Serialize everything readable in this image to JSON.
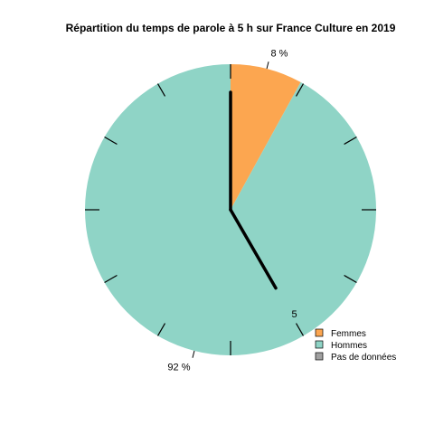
{
  "chart_data": {
    "type": "pie",
    "title": "Répartition du temps de parole à 5 h sur France Culture en 2019",
    "slices": [
      {
        "name": "Femmes",
        "value": 8,
        "label": "8 %",
        "color": "#fca650"
      },
      {
        "name": "Hommes",
        "value": 92,
        "label": "92 %",
        "color": "#8fd4c6"
      }
    ],
    "legend": [
      {
        "name": "Femmes",
        "color": "#fca650"
      },
      {
        "name": "Hommes",
        "color": "#8fd4c6"
      },
      {
        "name": "Pas de données",
        "color": "#a0a0a0"
      }
    ],
    "legend_position": "bottom-right",
    "clock": {
      "hour": 5,
      "hour_label": "5",
      "ticks": 12
    }
  }
}
